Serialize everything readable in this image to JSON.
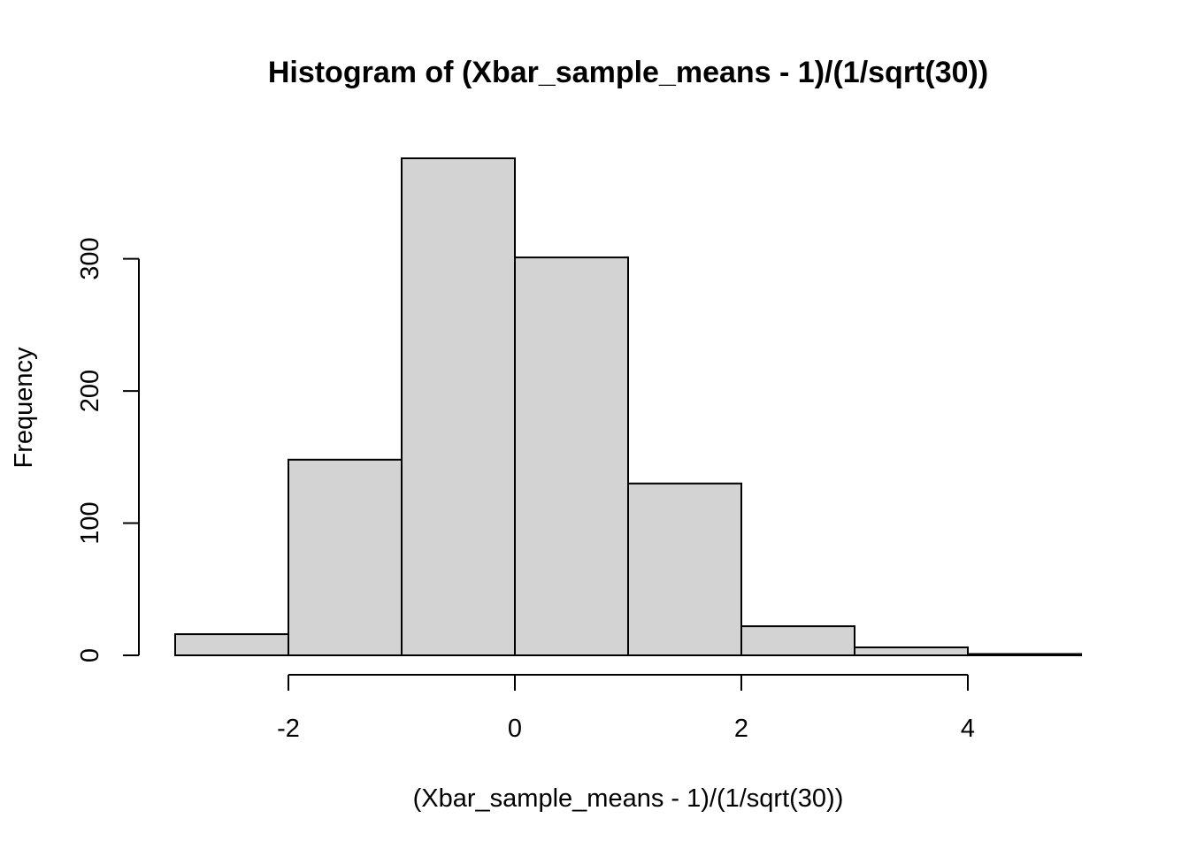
{
  "chart_data": {
    "type": "bar",
    "title": "Histogram of (Xbar_sample_means - 1)/(1/sqrt(30))",
    "xlabel": "(Xbar_sample_means - 1)/(1/sqrt(30))",
    "ylabel": "Frequency",
    "bins": [
      {
        "x0": -3,
        "x1": -2,
        "count": 16
      },
      {
        "x0": -2,
        "x1": -1,
        "count": 148
      },
      {
        "x0": -1,
        "x1": 0,
        "count": 376
      },
      {
        "x0": 0,
        "x1": 1,
        "count": 301
      },
      {
        "x0": 1,
        "x1": 2,
        "count": 130
      },
      {
        "x0": 2,
        "x1": 3,
        "count": 22
      },
      {
        "x0": 3,
        "x1": 4,
        "count": 6
      },
      {
        "x0": 4,
        "x1": 5,
        "count": 1
      }
    ],
    "xlim": [
      -3,
      5
    ],
    "ylim": [
      0,
      376
    ],
    "x_ticks": [
      -2,
      0,
      2,
      4
    ],
    "x_tick_labels": [
      "-2",
      "0",
      "2",
      "4"
    ],
    "y_ticks": [
      0,
      100,
      200,
      300
    ],
    "y_tick_labels": [
      "0",
      "100",
      "200",
      "300"
    ],
    "bar_fill": "#d3d3d3",
    "bar_stroke": "#000000",
    "grid": false,
    "legend": "none"
  }
}
